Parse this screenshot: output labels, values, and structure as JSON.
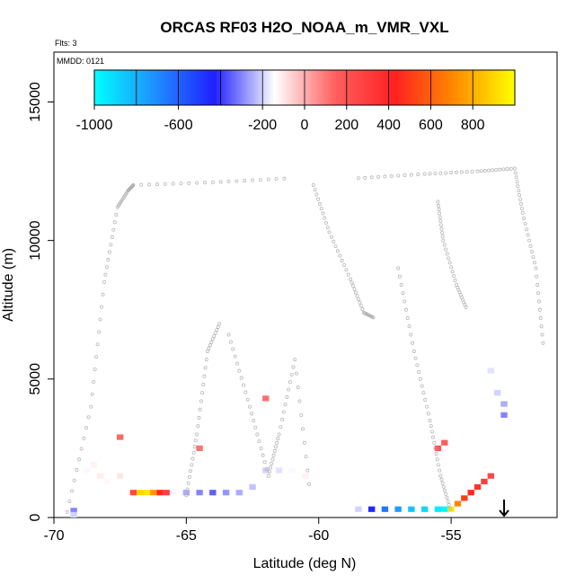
{
  "chart_data": {
    "type": "heatmap",
    "title": "ORCAS RF03 H2O_NOAA_m_VMR_VXL",
    "xlabel": "Latitude (deg N)",
    "ylabel": "Altitude (m)",
    "xlim": [
      -70,
      -51
    ],
    "ylim": [
      0,
      16800
    ],
    "x_ticks": [
      -70,
      -65,
      -60,
      -55
    ],
    "x_tick_labels": [
      "-70",
      "-65",
      "-60",
      "-55"
    ],
    "y_ticks": [
      0,
      5000,
      10000,
      15000
    ],
    "y_tick_labels": [
      "0",
      "5000",
      "10000",
      "15000"
    ],
    "annotations": {
      "flights": "Flts: 3",
      "date": "MMDD: 0121"
    },
    "colorbar": {
      "range": [
        -1000,
        1000
      ],
      "tick_values": [
        -1000,
        -600,
        -200,
        0,
        200,
        400,
        600,
        800
      ],
      "tick_labels": [
        "-1000",
        "-600",
        "-200",
        "0",
        "200",
        "400",
        "600",
        "800"
      ],
      "boundaries": [
        -1000,
        -800,
        -600,
        -400,
        -200,
        0,
        200,
        400,
        600,
        800,
        1000
      ],
      "colors": [
        "#00ffff",
        "#1e90ff",
        "#2020ff",
        "#ffffff",
        "#ff6060",
        "#ff2020",
        "#ff8c00",
        "#ffff00"
      ]
    },
    "cell_size": {
      "dlat": 0.25,
      "dalt": 200
    },
    "cells": [
      {
        "lat": -69.25,
        "alt": 250,
        "v": -300
      },
      {
        "lat": -69.25,
        "alt": 100,
        "v": -200
      },
      {
        "lat": -68.75,
        "alt": 1700,
        "v": -150
      },
      {
        "lat": -68.5,
        "alt": 1900,
        "v": -120
      },
      {
        "lat": -68.25,
        "alt": 1500,
        "v": -110
      },
      {
        "lat": -68.0,
        "alt": 1300,
        "v": -130
      },
      {
        "lat": -67.5,
        "alt": 1500,
        "v": -100
      },
      {
        "lat": -67.0,
        "alt": 900,
        "v": 250
      },
      {
        "lat": -66.75,
        "alt": 900,
        "v": 900
      },
      {
        "lat": -66.5,
        "alt": 900,
        "v": 950
      },
      {
        "lat": -66.25,
        "alt": 900,
        "v": 750
      },
      {
        "lat": -66.0,
        "alt": 900,
        "v": 450
      },
      {
        "lat": -65.75,
        "alt": 900,
        "v": 300
      },
      {
        "lat": -65.5,
        "alt": 900,
        "v": -150
      },
      {
        "lat": -65.0,
        "alt": 900,
        "v": -250
      },
      {
        "lat": -64.5,
        "alt": 900,
        "v": -300
      },
      {
        "lat": -64.0,
        "alt": 900,
        "v": -350
      },
      {
        "lat": -63.5,
        "alt": 900,
        "v": -280
      },
      {
        "lat": -63.0,
        "alt": 900,
        "v": -250
      },
      {
        "lat": -62.5,
        "alt": 1100,
        "v": -220
      },
      {
        "lat": -62.0,
        "alt": 1700,
        "v": -200
      },
      {
        "lat": -61.5,
        "alt": 1700,
        "v": -180
      },
      {
        "lat": -61.0,
        "alt": 1700,
        "v": -150
      },
      {
        "lat": -60.5,
        "alt": 1500,
        "v": -120
      },
      {
        "lat": -58.5,
        "alt": 300,
        "v": -200
      },
      {
        "lat": -58.0,
        "alt": 300,
        "v": -450
      },
      {
        "lat": -57.5,
        "alt": 300,
        "v": -650
      },
      {
        "lat": -57.0,
        "alt": 300,
        "v": -750
      },
      {
        "lat": -56.5,
        "alt": 300,
        "v": -850
      },
      {
        "lat": -56.0,
        "alt": 300,
        "v": -900
      },
      {
        "lat": -55.5,
        "alt": 300,
        "v": -950
      },
      {
        "lat": -55.25,
        "alt": 300,
        "v": -980
      },
      {
        "lat": -55.0,
        "alt": 300,
        "v": 950
      },
      {
        "lat": -54.75,
        "alt": 500,
        "v": 700
      },
      {
        "lat": -54.5,
        "alt": 700,
        "v": 500
      },
      {
        "lat": -54.25,
        "alt": 900,
        "v": 450
      },
      {
        "lat": -54.0,
        "alt": 1100,
        "v": 350
      },
      {
        "lat": -53.75,
        "alt": 1300,
        "v": 300
      },
      {
        "lat": -53.5,
        "alt": 1500,
        "v": 250
      },
      {
        "lat": -53.0,
        "alt": 4100,
        "v": -250
      },
      {
        "lat": -53.0,
        "alt": 3700,
        "v": -300
      },
      {
        "lat": -53.25,
        "alt": 4500,
        "v": -200
      },
      {
        "lat": -53.5,
        "alt": 5300,
        "v": -180
      },
      {
        "lat": -55.5,
        "alt": 2500,
        "v": 200
      },
      {
        "lat": -55.25,
        "alt": 2700,
        "v": 150
      },
      {
        "lat": -67.5,
        "alt": 2900,
        "v": 130
      },
      {
        "lat": -64.5,
        "alt": 2500,
        "v": 110
      },
      {
        "lat": -62.0,
        "alt": 4300,
        "v": 120
      }
    ],
    "track_segments": [
      {
        "lat": [
          -69.5,
          -68.6,
          -68.1,
          -67.6,
          -67.2,
          -67.0
        ],
        "alt": [
          200,
          4000,
          8500,
          11200,
          11800,
          12000
        ]
      },
      {
        "lat": [
          -67.0,
          -64.0,
          -61.0
        ],
        "alt": [
          12000,
          12100,
          12250
        ]
      },
      {
        "lat": [
          -60.2,
          -59.6,
          -58.8,
          -58.3,
          -57.9
        ],
        "alt": [
          12000,
          10300,
          8600,
          7400,
          7200
        ]
      },
      {
        "lat": [
          -58.5,
          -56.0,
          -54.0,
          -52.6
        ],
        "alt": [
          12250,
          12400,
          12500,
          12600
        ]
      },
      {
        "lat": [
          -52.6,
          -52.3,
          -51.8,
          -51.5
        ],
        "alt": [
          12600,
          11000,
          9000,
          6000
        ]
      },
      {
        "lat": [
          -55.5,
          -55.3,
          -54.8,
          -54.4
        ],
        "alt": [
          11400,
          10000,
          8400,
          7500
        ]
      },
      {
        "lat": [
          -57.0,
          -56.4,
          -55.8,
          -55.4,
          -55.0
        ],
        "alt": [
          9000,
          6000,
          3500,
          1500,
          200
        ]
      },
      {
        "lat": [
          -65.0,
          -64.6,
          -64.2,
          -63.7
        ],
        "alt": [
          800,
          3000,
          6000,
          7100
        ]
      },
      {
        "lat": [
          -63.4,
          -62.6,
          -61.9,
          -61.5,
          -60.9,
          -60.3
        ],
        "alt": [
          6600,
          4000,
          1500,
          3000,
          5700,
          700
        ]
      }
    ],
    "arrow_lat": -53.0
  }
}
